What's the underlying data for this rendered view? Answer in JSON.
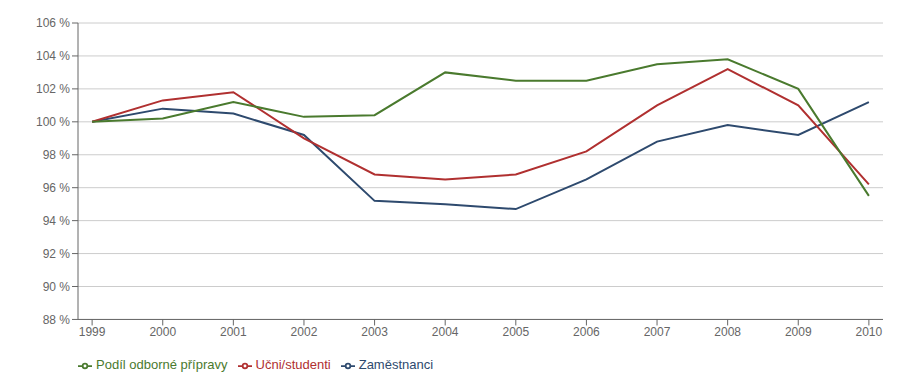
{
  "chart_data": {
    "type": "line",
    "x": [
      1999,
      2000,
      2001,
      2002,
      2003,
      2004,
      2005,
      2006,
      2007,
      2008,
      2009,
      2010
    ],
    "series": [
      {
        "name": "Zaměstnanci",
        "color": "#2e4a6e",
        "values": [
          100,
          100.8,
          100.5,
          99.2,
          95.2,
          95.0,
          94.7,
          96.5,
          98.8,
          99.8,
          99.2,
          101.2
        ]
      },
      {
        "name": "Učni/studenti",
        "color": "#b03030",
        "values": [
          100,
          101.3,
          101.8,
          99.0,
          96.8,
          96.5,
          96.8,
          98.2,
          101.0,
          103.2,
          101.0,
          96.2
        ]
      },
      {
        "name": "Podíl odborné přípravy",
        "color": "#4a7a2e",
        "values": [
          100,
          100.2,
          101.2,
          100.3,
          100.4,
          103.0,
          102.5,
          102.5,
          103.5,
          103.8,
          102.0,
          95.5
        ]
      }
    ],
    "xlim": [
      1998.8,
      2010.2
    ],
    "xticks": [
      1999,
      2000,
      2001,
      2002,
      2003,
      2004,
      2005,
      2006,
      2007,
      2008,
      2009,
      2010
    ],
    "ylim": [
      88,
      106
    ],
    "yticks": [
      {
        "value": 88,
        "label": "88 %"
      },
      {
        "value": 90,
        "label": "90 %"
      },
      {
        "value": 92,
        "label": "92 %"
      },
      {
        "value": 94,
        "label": "94 %"
      },
      {
        "value": 96,
        "label": "96 %"
      },
      {
        "value": 98,
        "label": "98 %"
      },
      {
        "value": 100,
        "label": "100 %"
      },
      {
        "value": 102,
        "label": "102 %"
      },
      {
        "value": 104,
        "label": "104 %"
      },
      {
        "value": 106,
        "label": "106 %"
      }
    ],
    "grid": true,
    "legend": "bottom"
  }
}
